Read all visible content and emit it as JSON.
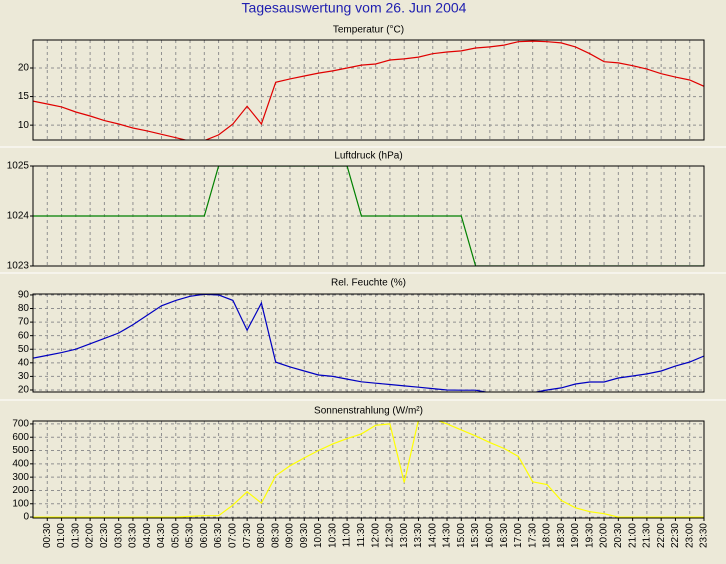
{
  "title": "Tagesauswertung vom 26. Jun 2004",
  "chart_data": [
    {
      "type": "line",
      "title": "Temperatur (°C)",
      "color": "#e00000",
      "values": [
        14.2,
        13.7,
        13.2,
        12.3,
        11.6,
        10.8,
        10.2,
        9.5,
        9.0,
        8.4,
        7.8,
        7.2,
        7.3,
        8.3,
        10.2,
        13.3,
        10.2,
        17.5,
        18.1,
        18.6,
        19.1,
        19.5,
        20.0,
        20.5,
        20.7,
        21.4,
        21.6,
        21.9,
        22.5,
        22.8,
        23.0,
        23.5,
        23.7,
        24.0,
        24.6,
        24.7,
        24.6,
        24.4,
        23.7,
        22.5,
        21.1,
        20.9,
        20.4,
        19.8,
        19.0,
        18.4,
        17.9,
        16.8
      ],
      "ylim": [
        7.4,
        24.9
      ],
      "yticks": [
        10,
        15,
        20
      ],
      "grid": true
    },
    {
      "type": "line",
      "title": "Luftdruck (hPa)",
      "color": "#008000",
      "values": [
        1024,
        1024,
        1024,
        1024,
        1024,
        1024,
        1024,
        1024,
        1024,
        1024,
        1024,
        1024,
        1024,
        1025,
        1025,
        1025,
        1025,
        1025,
        1025,
        1025,
        1025,
        1025,
        1025,
        1024,
        1024,
        1024,
        1024,
        1024,
        1024,
        1024,
        1024,
        1023,
        1023,
        1023,
        1023,
        1023,
        1023,
        1023,
        1023,
        1023,
        1023,
        1023,
        1023,
        1023,
        1023,
        1023,
        1023,
        1023
      ],
      "ylim": [
        1023,
        1025
      ],
      "yticks": [
        1023,
        1024,
        1025
      ],
      "grid": true
    },
    {
      "type": "line",
      "title": "Rel. Feuchte (%)",
      "color": "#0000c0",
      "values": [
        43.5,
        45.5,
        47.5,
        50,
        54,
        58,
        62,
        68,
        75,
        82,
        86,
        89,
        90.5,
        90,
        86,
        64,
        84,
        40.5,
        37,
        34,
        31,
        30,
        28,
        26,
        25,
        24,
        23,
        22,
        21,
        20,
        19.8,
        19.8,
        18,
        18,
        18,
        18,
        20,
        21.5,
        24.4,
        25.9,
        25.9,
        28.8,
        30.3,
        31.8,
        34,
        37.6,
        40.6,
        45
      ],
      "ylim": [
        18.5,
        90.7
      ],
      "yticks": [
        20,
        30,
        40,
        50,
        60,
        70,
        80,
        90
      ],
      "grid": true
    },
    {
      "type": "line",
      "title": "Sonnenstrahlung (W/m²)",
      "color": "#ffff00",
      "categories": [
        null,
        "00:30",
        "01:00",
        "01:30",
        "02:00",
        "02:30",
        "03:00",
        "03:30",
        "04:00",
        "04:30",
        "05:00",
        "05:30",
        "06:00",
        "06:30",
        "07:00",
        "07:30",
        "08:00",
        "08:30",
        "09:00",
        "09:30",
        "10:00",
        "10:30",
        "11:00",
        "11:30",
        "12:00",
        "12:30",
        "13:00",
        "13:30",
        "14:00",
        "14:30",
        "15:00",
        "15:30",
        "16:00",
        "16:30",
        "17:00",
        "17:30",
        "18:00",
        "18:30",
        "19:00",
        "19:30",
        "20:00",
        "20:30",
        "21:00",
        "21:30",
        "22:00",
        "22:30",
        "23:00",
        "23:30"
      ],
      "values": [
        0,
        0,
        0,
        0,
        0,
        0,
        0,
        0,
        0,
        0,
        0,
        5,
        10,
        10,
        90,
        190,
        105,
        310,
        385,
        445,
        500,
        550,
        590,
        625,
        690,
        700,
        260,
        730,
        740,
        700,
        655,
        610,
        560,
        515,
        455,
        265,
        245,
        125,
        70,
        40,
        25,
        0,
        0,
        0,
        0,
        0,
        0,
        0
      ],
      "ylim": [
        -7,
        722
      ],
      "yticks": [
        0,
        100,
        200,
        300,
        400,
        500,
        600,
        700
      ],
      "grid": true
    }
  ]
}
